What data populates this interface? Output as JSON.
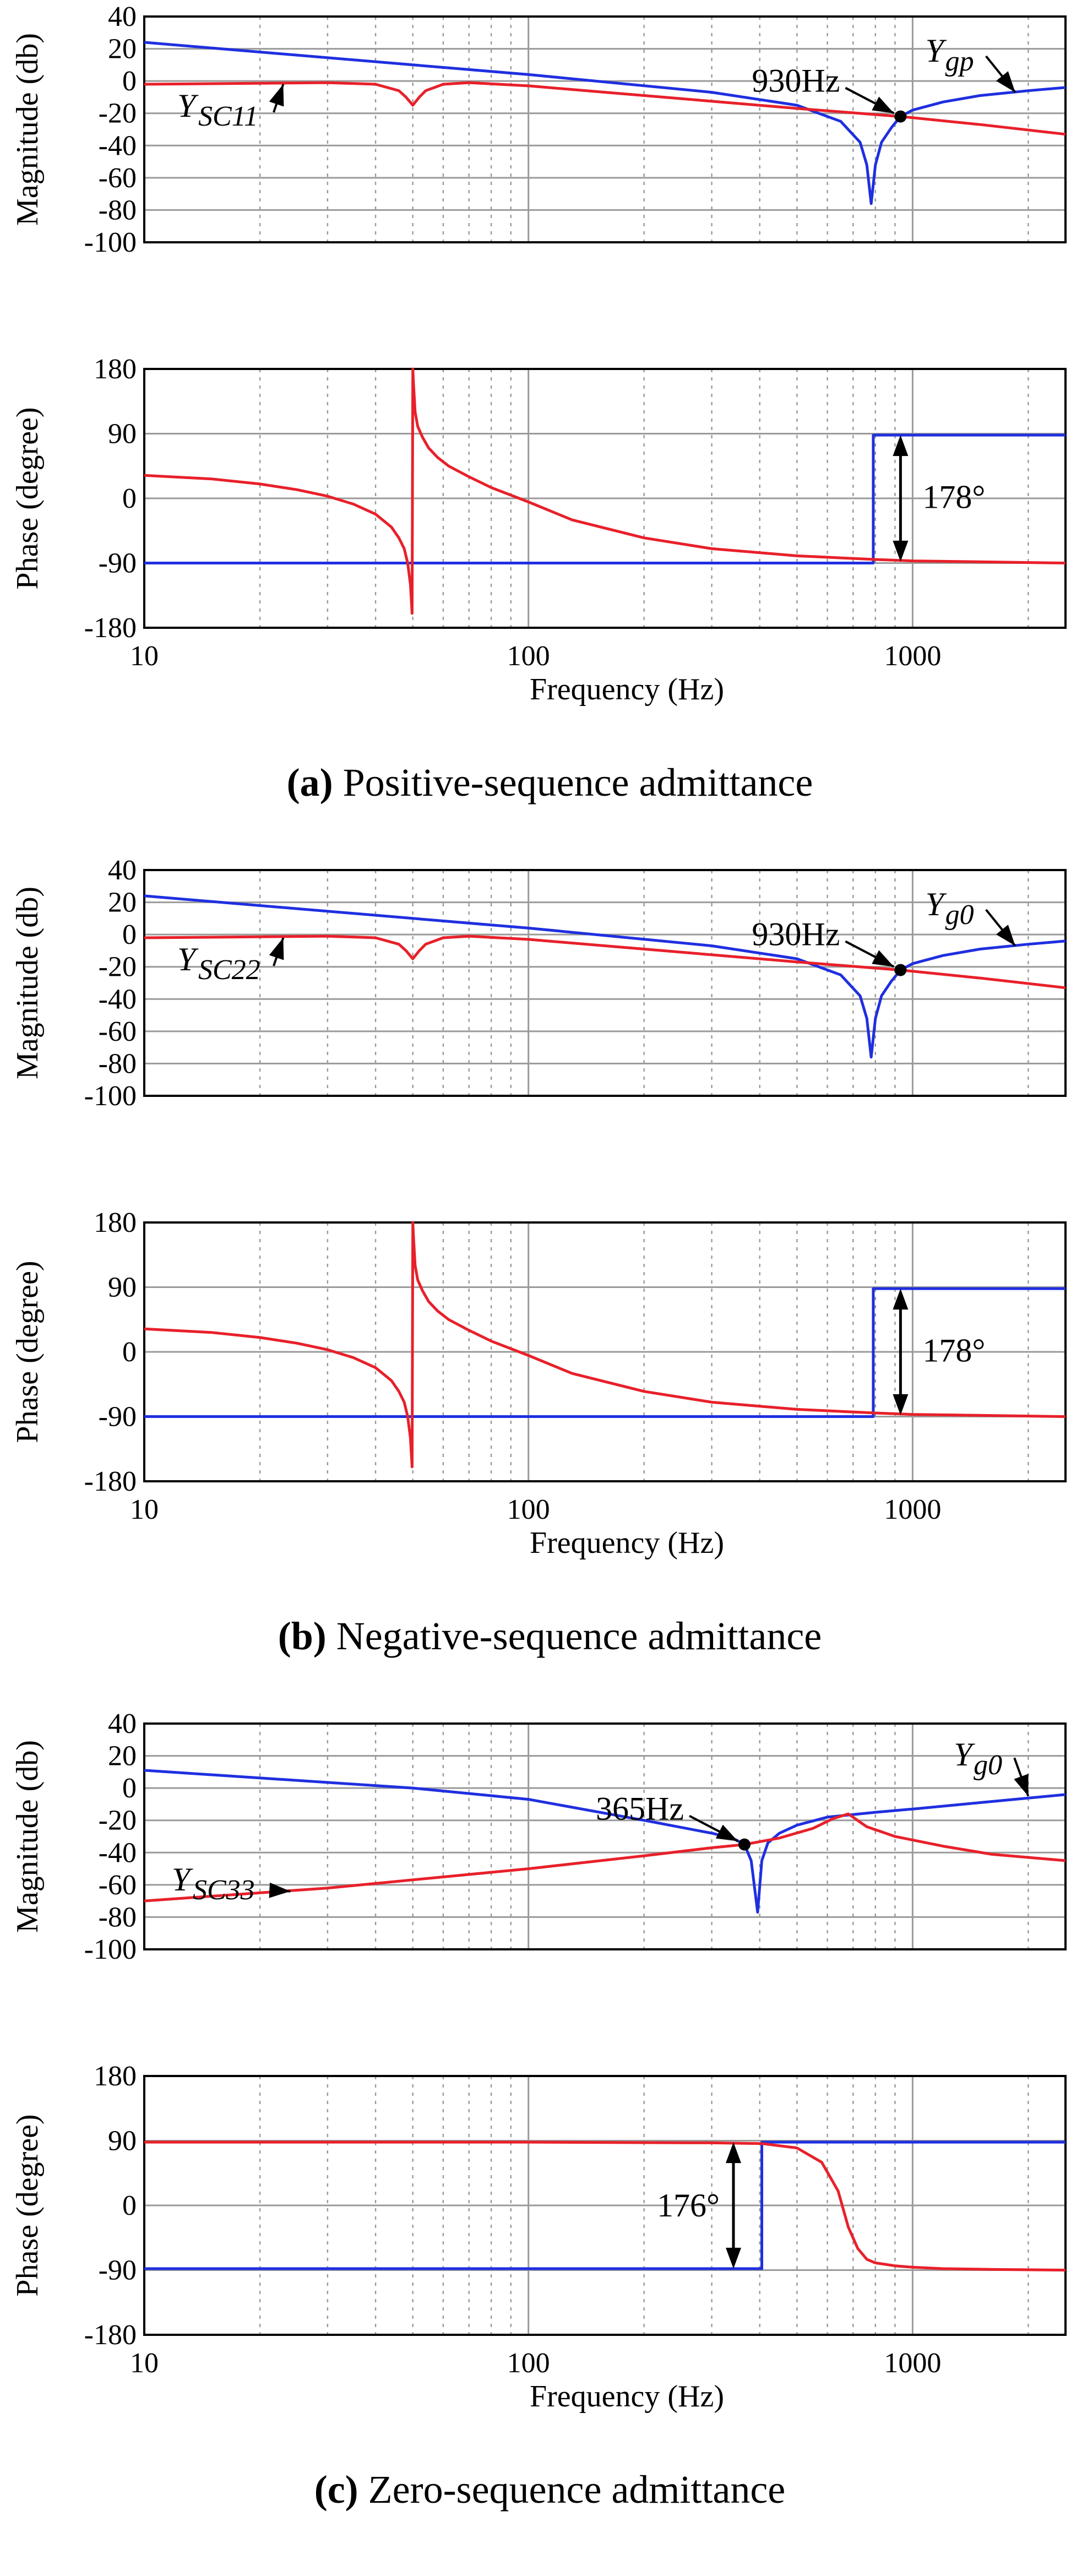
{
  "colors": {
    "blue": "#1f2fe0",
    "red": "#e8202a"
  },
  "chart_data": [
    {
      "panel": "a",
      "type": "line",
      "caption": {
        "letter": "(a)",
        "text": "Positive-sequence admittance"
      },
      "xscale": "log",
      "xlim": [
        10,
        2500
      ],
      "x_ticklabels": [
        "10",
        "100",
        "1000"
      ],
      "xlabel": "Frequency (Hz)",
      "magnitude": {
        "ylabel": "Magnitude (db)",
        "ylim": [
          -100,
          40
        ],
        "yticks": [
          40,
          20,
          0,
          -20,
          -40,
          -60,
          -80,
          -100
        ],
        "series": [
          {
            "name": "Ygp",
            "label": "Y",
            "label_sub": "gp",
            "color": "blue",
            "x": [
              10,
              100,
              300,
              500,
              650,
              730,
              760,
              780,
              800,
              830,
              880,
              930,
              1000,
              1200,
              1500,
              2000,
              2500
            ],
            "y": [
              24,
              4,
              -7,
              -15,
              -25,
              -38,
              -52,
              -76,
              -52,
              -38,
              -29,
              -22,
              -18,
              -13,
              -9,
              -6,
              -4
            ]
          },
          {
            "name": "YSC11",
            "label": "Y",
            "label_sub": "SC11",
            "color": "red",
            "x": [
              10,
              30,
              40,
              46,
              48,
              50,
              52,
              54,
              60,
              70,
              100,
              200,
              500,
              930,
              1500,
              2500
            ],
            "y": [
              -2,
              -1,
              -2,
              -6,
              -10,
              -15,
              -10,
              -6,
              -2,
              -1,
              -3,
              -9,
              -17,
              -22,
              -27,
              -33
            ]
          }
        ],
        "annotations": [
          {
            "text": "930Hz",
            "x": 930,
            "y": -22
          }
        ]
      },
      "phase": {
        "ylabel": "Phase (degree)",
        "ylim": [
          -180,
          180
        ],
        "yticks": [
          180,
          90,
          0,
          -90,
          -180
        ],
        "series": [
          {
            "name": "Ygp",
            "color": "blue",
            "step": true,
            "x": [
              10,
              790,
              790,
              2500
            ],
            "y": [
              -90,
              -90,
              88,
              88
            ]
          },
          {
            "name": "YSC11",
            "color": "red",
            "x": [
              10,
              15,
              20,
              25,
              30,
              35,
              40,
              44,
              46,
              47.5,
              48.5,
              49.3,
              49.8,
              50,
              50.2,
              50.7,
              51.5,
              53,
              55,
              58,
              62,
              70,
              80,
              100,
              130,
              200,
              300,
              500,
              800,
              1000,
              2500
            ],
            "y": [
              32,
              27,
              20,
              12,
              3,
              -8,
              -22,
              -40,
              -55,
              -70,
              -90,
              -120,
              -160,
              180,
              160,
              120,
              100,
              85,
              70,
              57,
              45,
              30,
              15,
              -5,
              -30,
              -55,
              -70,
              -80,
              -85,
              -87,
              -90
            ]
          }
        ],
        "annotations": [
          {
            "text": "178°",
            "x": 930
          }
        ]
      }
    },
    {
      "panel": "b",
      "type": "line",
      "caption": {
        "letter": "(b)",
        "text": "Negative-sequence admittance"
      },
      "xscale": "log",
      "xlim": [
        10,
        2500
      ],
      "x_ticklabels": [
        "10",
        "100",
        "1000"
      ],
      "xlabel": "Frequency (Hz)",
      "magnitude": {
        "ylabel": "Magnitude (db)",
        "ylim": [
          -100,
          40
        ],
        "yticks": [
          40,
          20,
          0,
          -20,
          -40,
          -60,
          -80,
          -100
        ],
        "series": [
          {
            "name": "Yg0",
            "label": "Y",
            "label_sub": "g0",
            "color": "blue",
            "x": [
              10,
              100,
              300,
              500,
              650,
              730,
              760,
              780,
              800,
              830,
              880,
              930,
              1000,
              1200,
              1500,
              2000,
              2500
            ],
            "y": [
              24,
              4,
              -7,
              -15,
              -25,
              -38,
              -52,
              -76,
              -52,
              -38,
              -29,
              -22,
              -18,
              -13,
              -9,
              -6,
              -4
            ]
          },
          {
            "name": "YSC22",
            "label": "Y",
            "label_sub": "SC22",
            "color": "red",
            "x": [
              10,
              30,
              40,
              46,
              48,
              50,
              52,
              54,
              60,
              70,
              100,
              200,
              500,
              930,
              1500,
              2500
            ],
            "y": [
              -2,
              -1,
              -2,
              -6,
              -10,
              -15,
              -10,
              -6,
              -2,
              -1,
              -3,
              -9,
              -17,
              -22,
              -27,
              -33
            ]
          }
        ],
        "annotations": [
          {
            "text": "930Hz",
            "x": 930,
            "y": -22
          }
        ]
      },
      "phase": {
        "ylabel": "Phase (degree)",
        "ylim": [
          -180,
          180
        ],
        "yticks": [
          180,
          90,
          0,
          -90,
          -180
        ],
        "series": [
          {
            "name": "Yg0",
            "color": "blue",
            "step": true,
            "x": [
              10,
              790,
              790,
              2500
            ],
            "y": [
              -90,
              -90,
              88,
              88
            ]
          },
          {
            "name": "YSC22",
            "color": "red",
            "x": [
              10,
              15,
              20,
              25,
              30,
              35,
              40,
              44,
              46,
              47.5,
              48.5,
              49.3,
              49.8,
              50,
              50.2,
              50.7,
              51.5,
              53,
              55,
              58,
              62,
              70,
              80,
              100,
              130,
              200,
              300,
              500,
              800,
              1000,
              2500
            ],
            "y": [
              32,
              27,
              20,
              12,
              3,
              -8,
              -22,
              -40,
              -55,
              -70,
              -90,
              -120,
              -160,
              180,
              160,
              120,
              100,
              85,
              70,
              57,
              45,
              30,
              15,
              -5,
              -30,
              -55,
              -70,
              -80,
              -85,
              -87,
              -90
            ]
          }
        ],
        "annotations": [
          {
            "text": "178°",
            "x": 930
          }
        ]
      }
    },
    {
      "panel": "c",
      "type": "line",
      "caption": {
        "letter": "(c)",
        "text": "Zero-sequence admittance"
      },
      "xscale": "log",
      "xlim": [
        10,
        2500
      ],
      "x_ticklabels": [
        "10",
        "100",
        "1000"
      ],
      "xlabel": "Frequency (Hz)",
      "magnitude": {
        "ylabel": "Magnitude (db)",
        "ylim": [
          -100,
          40
        ],
        "yticks": [
          40,
          20,
          0,
          -20,
          -40,
          -60,
          -80,
          -100
        ],
        "series": [
          {
            "name": "Yg0",
            "label": "Y",
            "label_sub": "g0",
            "color": "blue",
            "x": [
              10,
              50,
              100,
              200,
              300,
              340,
              365,
              380,
              395,
              405,
              420,
              450,
              500,
              600,
              800,
              1000,
              1500,
              2500
            ],
            "y": [
              11,
              0,
              -7,
              -20,
              -28,
              -31,
              -35,
              -45,
              -77,
              -45,
              -34,
              -28,
              -23,
              -18,
              -15,
              -13,
              -9,
              -4
            ]
          },
          {
            "name": "YSC33",
            "label": "Y",
            "label_sub": "SC33",
            "color": "red",
            "x": [
              10,
              30,
              100,
              200,
              300,
              365,
              450,
              550,
              620,
              680,
              760,
              900,
              1200,
              1600,
              2500
            ],
            "y": [
              -70,
              -62,
              -50,
              -42,
              -37,
              -35,
              -31,
              -25,
              -19,
              -16,
              -24,
              -30,
              -36,
              -41,
              -45
            ]
          }
        ],
        "annotations": [
          {
            "text": "365Hz",
            "x": 365,
            "y": -35
          }
        ]
      },
      "phase": {
        "ylabel": "Phase (degree)",
        "ylim": [
          -180,
          180
        ],
        "yticks": [
          180,
          90,
          0,
          -90,
          -180
        ],
        "series": [
          {
            "name": "Yg0",
            "color": "blue",
            "step": true,
            "x": [
              10,
              405,
              405,
              2500
            ],
            "y": [
              -88,
              -88,
              88,
              88
            ]
          },
          {
            "name": "YSC33",
            "color": "red",
            "x": [
              10,
              100,
              300,
              405,
              500,
              580,
              640,
              680,
              720,
              760,
              800,
              900,
              1000,
              1200,
              1600,
              2500
            ],
            "y": [
              88,
              88,
              87,
              86,
              80,
              60,
              20,
              -30,
              -60,
              -75,
              -80,
              -84,
              -86,
              -88,
              -89,
              -90
            ]
          }
        ],
        "annotations": [
          {
            "text": "176°",
            "x": 365
          }
        ]
      }
    }
  ]
}
